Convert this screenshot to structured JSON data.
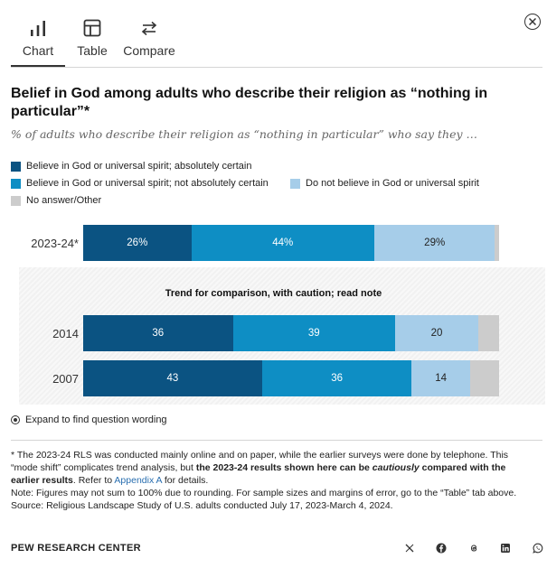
{
  "tabs": [
    {
      "label": "Chart",
      "icon": "bar-chart-icon",
      "active": true
    },
    {
      "label": "Table",
      "icon": "table-icon",
      "active": false
    },
    {
      "label": "Compare",
      "icon": "compare-arrows-icon",
      "active": false
    }
  ],
  "close_icon": "close-icon",
  "colors": {
    "certain": "#0b5382",
    "not_certain": "#0e8ec4",
    "not_believe": "#a6cde9",
    "no_answer": "#cccccc"
  },
  "chart_data": {
    "type": "bar",
    "orientation": "horizontal-stacked",
    "title": "Belief in God among adults who describe their religion as “nothing in particular”*",
    "subtitle": "% of adults who describe their religion as “nothing in particular” who say they …",
    "categories": [
      "2023-24*",
      "2014",
      "2007"
    ],
    "series": [
      {
        "name": "Believe in God or universal spirit; absolutely certain",
        "values": [
          26,
          36,
          43
        ],
        "labels": [
          "26%",
          "36",
          "43"
        ]
      },
      {
        "name": "Believe in God or universal spirit; not absolutely certain",
        "values": [
          44,
          39,
          36
        ],
        "labels": [
          "44%",
          "39",
          "36"
        ]
      },
      {
        "name": "Do not believe in God or universal spirit",
        "values": [
          29,
          20,
          14
        ],
        "labels": [
          "29%",
          "20",
          "14"
        ]
      },
      {
        "name": "No answer/Other",
        "values": [
          1,
          5,
          7
        ],
        "labels": [
          "",
          "",
          ""
        ]
      }
    ],
    "xlim": [
      0,
      100
    ],
    "legend_position": "top",
    "grid": false,
    "caution_note": "Trend for comparison, with caution; read note"
  },
  "expand_label": "Expand to find question wording",
  "notes": {
    "p1_a": "* The 2023-24 RLS was conducted mainly online and on paper, while the earlier surveys were done by telephone. This “mode shift” complicates trend analysis, but ",
    "p1_b": "the 2023-24 results shown here can be ",
    "p1_c": "cautiously",
    "p1_d": " compared with the earlier results",
    "p1_e": ". Refer to ",
    "p1_link": "Appendix A",
    "p1_f": " for details.",
    "note": "Note: Figures may not sum to 100% due to rounding. For sample sizes and margins of error, go to the “Table” tab above.",
    "source": "Source: Religious Landscape Study of U.S. adults conducted July 17, 2023-March 4, 2024."
  },
  "brand": "PEW RESEARCH CENTER",
  "share_icons": [
    "x-twitter-icon",
    "facebook-icon",
    "threads-icon",
    "linkedin-icon",
    "whatsapp-icon"
  ]
}
